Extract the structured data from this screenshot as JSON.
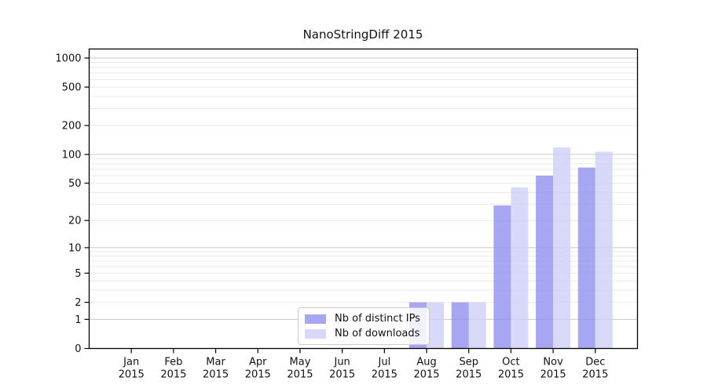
{
  "chart_data": {
    "type": "bar",
    "title": "NanoStringDiff 2015",
    "x_categories": [
      "Jan",
      "Feb",
      "Mar",
      "Apr",
      "May",
      "Jun",
      "Jul",
      "Aug",
      "Sep",
      "Oct",
      "Nov",
      "Dec"
    ],
    "x_year": "2015",
    "series": [
      {
        "name": "Nb of distinct IPs",
        "color_fill": "#9090f0",
        "color_legend": "#a6a6f3",
        "values": [
          0,
          0,
          0,
          0,
          0,
          0,
          0,
          2,
          2,
          29,
          60,
          73
        ]
      },
      {
        "name": "Nb of downloads",
        "color_fill": "#cecef6",
        "color_legend": "#d8d8f8",
        "values": [
          0,
          0,
          0,
          0,
          0,
          0,
          0,
          2,
          2,
          45,
          118,
          107
        ]
      }
    ],
    "y_ticks": [
      0,
      1,
      2,
      5,
      10,
      20,
      50,
      100,
      200,
      500,
      1000
    ],
    "y_scale": "log10(1+y)",
    "ylim": [
      0,
      1000
    ],
    "grid": "horizontal",
    "grid_major_at": [
      1,
      10,
      100,
      1000
    ],
    "legend_position": "lower-center-left inside plot",
    "colors": {
      "grid_minor": "#e9e9e9",
      "grid_major": "#c8c8c8",
      "axis": "#000000"
    }
  }
}
